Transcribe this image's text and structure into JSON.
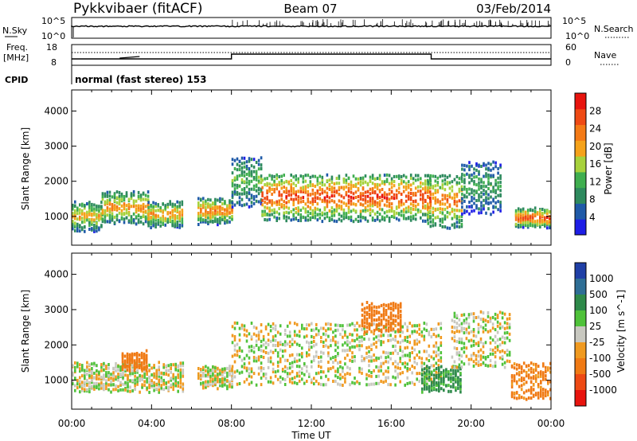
{
  "header": {
    "station": "Pykkvibaer (fitACF)",
    "beam": "Beam 07",
    "date": "03/Feb/2014"
  },
  "panels": {
    "nsky": {
      "label": "N.Sky",
      "tick_top": "10^5",
      "tick_bottom": "10^0",
      "right_label": "N.Search",
      "right_tick_top": "10^5",
      "right_tick_bottom": "10^0"
    },
    "freq": {
      "label_line1": "Freq.",
      "label_line2": "[MHz]",
      "tick_top": "18",
      "tick_bottom": "8",
      "right_label": "Nave",
      "right_tick_top": "60",
      "right_tick_bottom": "0"
    },
    "cpid": {
      "label": "CPID",
      "text": "normal (fast stereo) 153"
    }
  },
  "colors": {
    "power_scale": [
      "#1e1ee6",
      "#1f5aa8",
      "#2e8a5e",
      "#3fae4f",
      "#a7d23c",
      "#f5a21a",
      "#f47a16",
      "#ef4a14",
      "#e8140e"
    ],
    "velocity_scale": [
      "#1f3fa6",
      "#2e6e95",
      "#2e8a4a",
      "#4fc23a",
      "#c8c8c0",
      "#f09a20",
      "#f07a14",
      "#ee4a14",
      "#e8140e"
    ],
    "ground_scatter": "#c8c8c0"
  },
  "chart_data": [
    {
      "type": "heatmap",
      "title": "",
      "xlabel": "Time UT",
      "ylabel": "Slant Range [km]",
      "x_ticks": [
        "00:00",
        "04:00",
        "08:00",
        "12:00",
        "16:00",
        "20:00",
        "00:00"
      ],
      "x_range_hours": [
        0,
        24
      ],
      "y_ticks": [
        1000,
        2000,
        3000,
        4000
      ],
      "ylim": [
        180,
        4600
      ],
      "colorbar_label": "Power [dB]",
      "colorbar_ticks": [
        4,
        8,
        12,
        16,
        20,
        24,
        28
      ],
      "colorbar_range": [
        0,
        32
      ],
      "echo_bands": [
        {
          "t_start": 0.0,
          "t_end": 1.5,
          "range_low": 600,
          "range_high": 1400,
          "peak_power": 20
        },
        {
          "t_start": 1.5,
          "t_end": 3.8,
          "range_low": 800,
          "range_high": 1700,
          "peak_power": 22
        },
        {
          "t_start": 3.8,
          "t_end": 5.6,
          "range_low": 700,
          "range_high": 1400,
          "peak_power": 22
        },
        {
          "t_start": 6.3,
          "t_end": 8.0,
          "range_low": 800,
          "range_high": 1500,
          "peak_power": 24
        },
        {
          "t_start": 8.0,
          "t_end": 9.5,
          "range_low": 1300,
          "range_high": 2700,
          "peak_power": 14
        },
        {
          "t_start": 9.5,
          "t_end": 18.0,
          "range_low": 900,
          "range_high": 2200,
          "peak_power": 28
        },
        {
          "t_start": 17.8,
          "t_end": 19.5,
          "range_low": 700,
          "range_high": 2200,
          "peak_power": 24
        },
        {
          "t_start": 19.5,
          "t_end": 21.5,
          "range_low": 1100,
          "range_high": 2600,
          "peak_power": 12
        },
        {
          "t_start": 22.2,
          "t_end": 24.0,
          "range_low": 700,
          "range_high": 1200,
          "peak_power": 28
        }
      ]
    },
    {
      "type": "heatmap",
      "title": "",
      "xlabel": "Time UT",
      "ylabel": "Slant Range [km]",
      "x_ticks": [
        "00:00",
        "04:00",
        "08:00",
        "12:00",
        "16:00",
        "20:00",
        "00:00"
      ],
      "x_range_hours": [
        0,
        24
      ],
      "y_ticks": [
        1000,
        2000,
        3000,
        4000
      ],
      "ylim": [
        180,
        4600
      ],
      "colorbar_label": "Velocity [m s^-1]",
      "colorbar_ticks": [
        1000,
        500,
        100,
        25,
        -25,
        -100,
        -500,
        -1000
      ],
      "velocity_bands": [
        {
          "t_start": 0.0,
          "t_end": 5.6,
          "range_low": 700,
          "range_high": 1500,
          "velocity": 0
        },
        {
          "t_start": 2.5,
          "t_end": 3.8,
          "range_low": 1300,
          "range_high": 1800,
          "velocity": -250
        },
        {
          "t_start": 6.3,
          "t_end": 8.0,
          "range_low": 800,
          "range_high": 1400,
          "velocity": 0
        },
        {
          "t_start": 8.0,
          "t_end": 18.5,
          "range_low": 900,
          "range_high": 2700,
          "velocity": 0
        },
        {
          "t_start": 14.5,
          "t_end": 16.5,
          "range_low": 2400,
          "range_high": 3200,
          "velocity": -300
        },
        {
          "t_start": 17.5,
          "t_end": 19.5,
          "range_low": 700,
          "range_high": 1400,
          "velocity": 150
        },
        {
          "t_start": 19.0,
          "t_end": 22.0,
          "range_low": 1400,
          "range_high": 3000,
          "velocity": 0
        },
        {
          "t_start": 22.0,
          "t_end": 24.0,
          "range_low": 500,
          "range_high": 1500,
          "velocity": -150
        }
      ]
    }
  ]
}
